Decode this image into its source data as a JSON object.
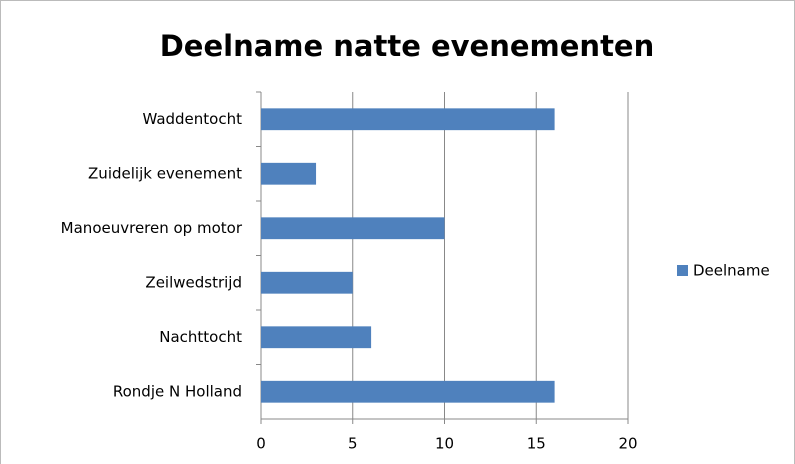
{
  "chart_data": {
    "type": "bar",
    "orientation": "horizontal",
    "title": "Deelname natte evenementen",
    "categories": [
      "Waddentocht",
      "Zuidelijk evenement",
      "Manoeuvreren op motor",
      "Zeilwedstrijd",
      "Nachttocht",
      "Rondje N Holland"
    ],
    "series": [
      {
        "name": "Deelname",
        "color": "#4f81bd",
        "values": [
          16,
          3,
          10,
          5,
          6,
          16
        ]
      }
    ],
    "xlim": [
      0,
      20
    ],
    "xticks": [
      0,
      5,
      10,
      15,
      20
    ],
    "grid": true,
    "legend": "right"
  }
}
